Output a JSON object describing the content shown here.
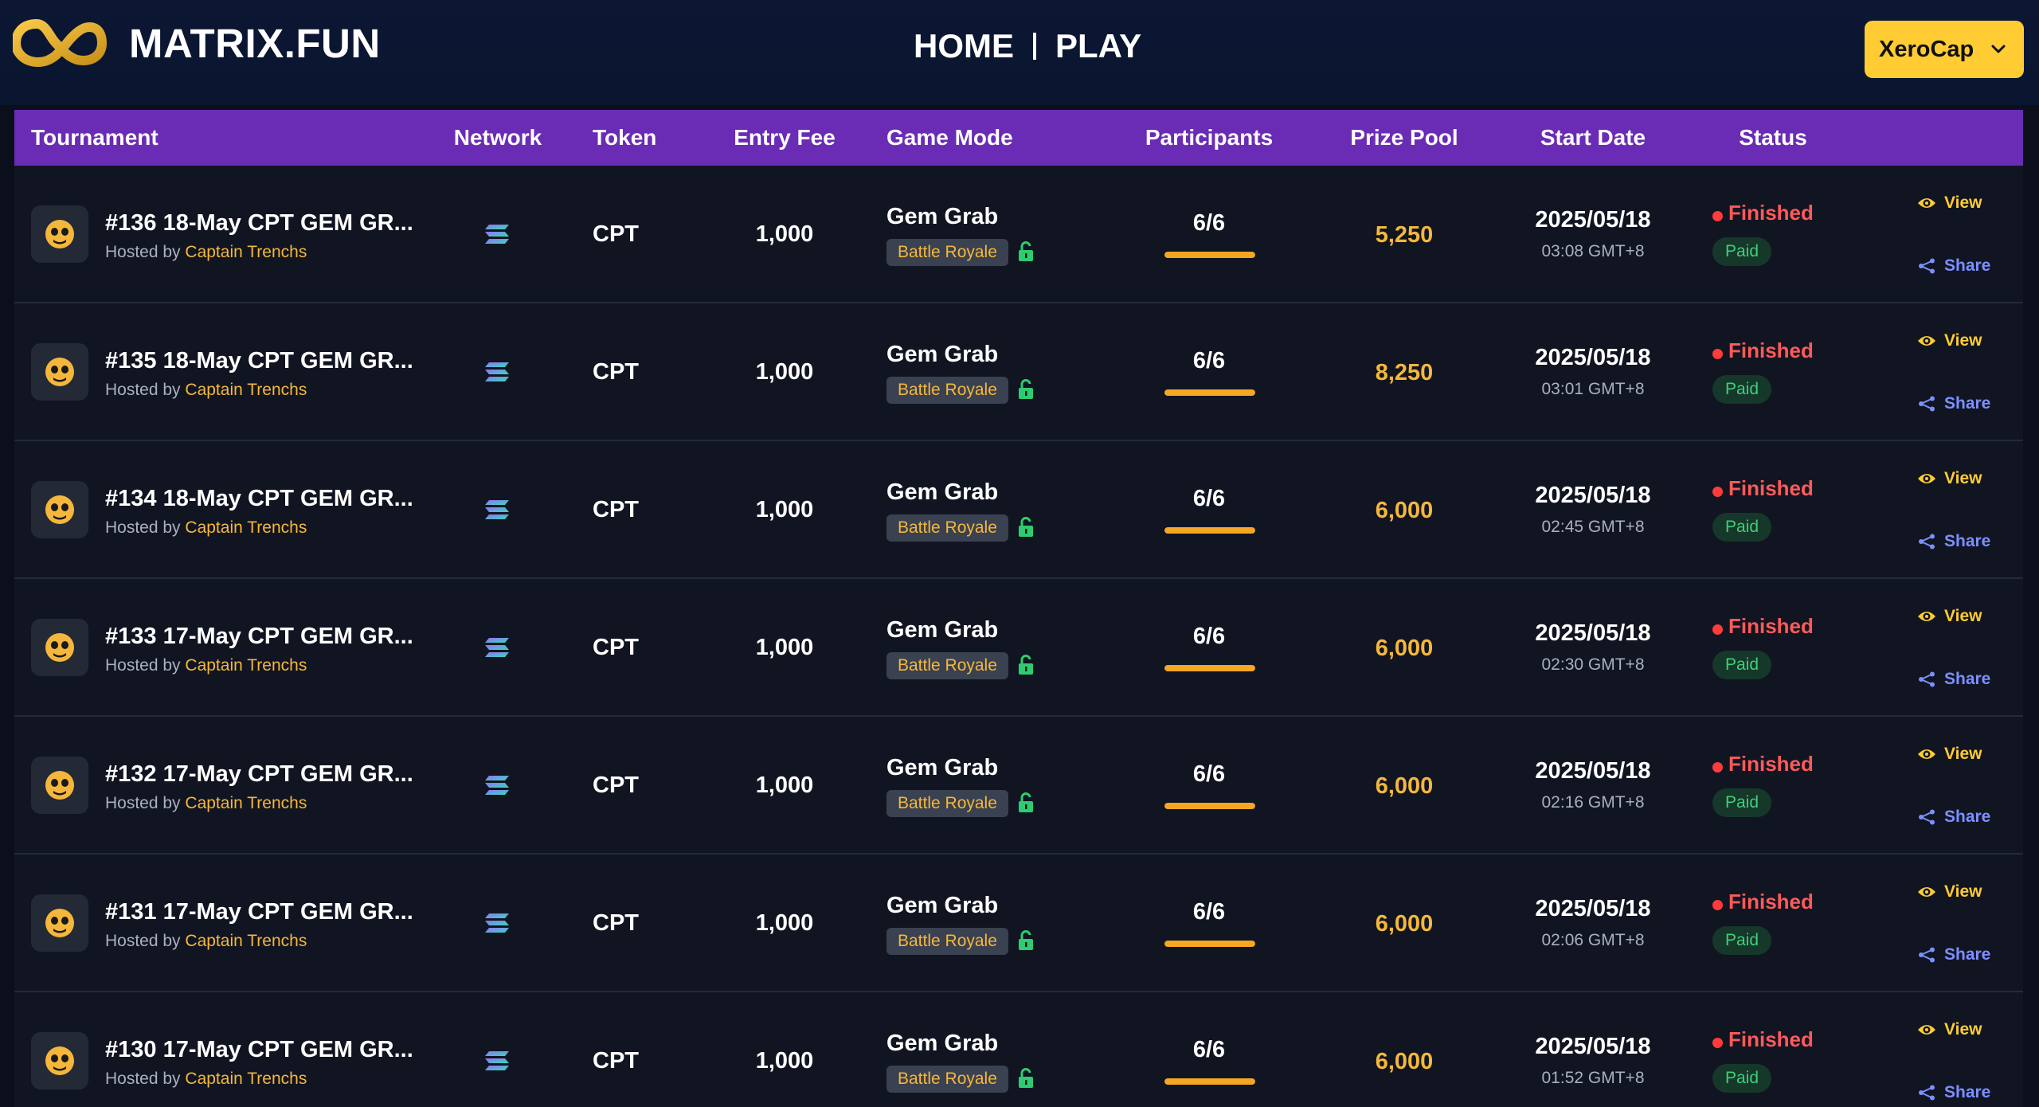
{
  "header": {
    "logo_text": "MATRIX.FUN",
    "nav": [
      {
        "label": "HOME"
      },
      {
        "label": "PLAY"
      }
    ],
    "user": {
      "name": "XeroCap"
    }
  },
  "table": {
    "columns": {
      "tournament": "Tournament",
      "network": "Network",
      "token": "Token",
      "entry_fee": "Entry Fee",
      "game_mode": "Game Mode",
      "participants": "Participants",
      "prize_pool": "Prize Pool",
      "start_date": "Start Date",
      "status": "Status"
    },
    "hosted_by_label": "Hosted by",
    "view_label": "View",
    "share_label": "Share",
    "rows": [
      {
        "name": "#136 18-May CPT GEM GR...",
        "host": "Captain Trenchs",
        "token": "CPT",
        "entry_fee": "1,000",
        "mode": "Gem Grab",
        "mode_type": "Battle Royale",
        "participants": "6/6",
        "fill": 1.0,
        "prize": "5,250",
        "date": "2025/05/18",
        "time": "03:08 GMT+8",
        "status": "Finished",
        "payment": "Paid"
      },
      {
        "name": "#135 18-May CPT GEM GR...",
        "host": "Captain Trenchs",
        "token": "CPT",
        "entry_fee": "1,000",
        "mode": "Gem Grab",
        "mode_type": "Battle Royale",
        "participants": "6/6",
        "fill": 1.0,
        "prize": "8,250",
        "date": "2025/05/18",
        "time": "03:01 GMT+8",
        "status": "Finished",
        "payment": "Paid"
      },
      {
        "name": "#134 18-May CPT GEM GR...",
        "host": "Captain Trenchs",
        "token": "CPT",
        "entry_fee": "1,000",
        "mode": "Gem Grab",
        "mode_type": "Battle Royale",
        "participants": "6/6",
        "fill": 1.0,
        "prize": "6,000",
        "date": "2025/05/18",
        "time": "02:45 GMT+8",
        "status": "Finished",
        "payment": "Paid"
      },
      {
        "name": "#133 17-May CPT GEM GR...",
        "host": "Captain Trenchs",
        "token": "CPT",
        "entry_fee": "1,000",
        "mode": "Gem Grab",
        "mode_type": "Battle Royale",
        "participants": "6/6",
        "fill": 1.0,
        "prize": "6,000",
        "date": "2025/05/18",
        "time": "02:30 GMT+8",
        "status": "Finished",
        "payment": "Paid"
      },
      {
        "name": "#132 17-May CPT GEM GR...",
        "host": "Captain Trenchs",
        "token": "CPT",
        "entry_fee": "1,000",
        "mode": "Gem Grab",
        "mode_type": "Battle Royale",
        "participants": "6/6",
        "fill": 1.0,
        "prize": "6,000",
        "date": "2025/05/18",
        "time": "02:16 GMT+8",
        "status": "Finished",
        "payment": "Paid"
      },
      {
        "name": "#131 17-May CPT GEM GR...",
        "host": "Captain Trenchs",
        "token": "CPT",
        "entry_fee": "1,000",
        "mode": "Gem Grab",
        "mode_type": "Battle Royale",
        "participants": "6/6",
        "fill": 1.0,
        "prize": "6,000",
        "date": "2025/05/18",
        "time": "02:06 GMT+8",
        "status": "Finished",
        "payment": "Paid"
      },
      {
        "name": "#130 17-May CPT GEM GR...",
        "host": "Captain Trenchs",
        "token": "CPT",
        "entry_fee": "1,000",
        "mode": "Gem Grab",
        "mode_type": "Battle Royale",
        "participants": "6/6",
        "fill": 1.0,
        "prize": "6,000",
        "date": "2025/05/18",
        "time": "01:52 GMT+8",
        "status": "Finished",
        "payment": "Paid"
      }
    ]
  },
  "icons": {
    "logo": "infinity-logo-icon",
    "avatar": "skull-icon",
    "network": "solana-icon",
    "lock": "unlocked-icon",
    "view": "eye-icon",
    "share": "share-icon",
    "dropdown": "chevron-down-icon"
  },
  "colors": {
    "header_bg": "#0c1733",
    "table_header": "#6a2bb5",
    "accent": "#ffcc33",
    "prize": "#f5b73b",
    "finished": "#ff5a5a",
    "paid": "#3ecf7a",
    "share": "#7c8fff"
  }
}
